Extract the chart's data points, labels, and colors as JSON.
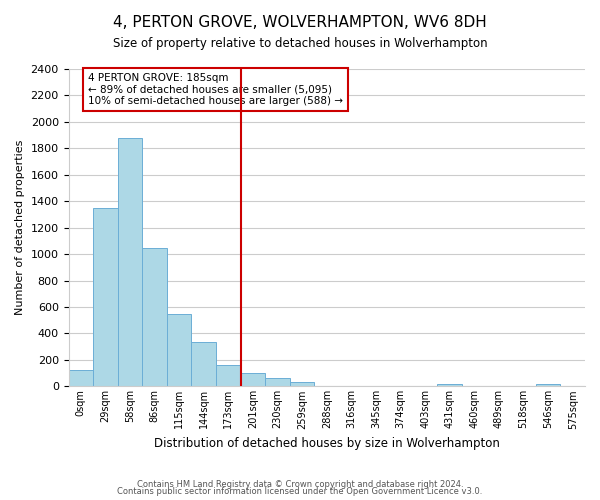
{
  "title": "4, PERTON GROVE, WOLVERHAMPTON, WV6 8DH",
  "subtitle": "Size of property relative to detached houses in Wolverhampton",
  "xlabel": "Distribution of detached houses by size in Wolverhampton",
  "ylabel": "Number of detached properties",
  "bin_labels": [
    "0sqm",
    "29sqm",
    "58sqm",
    "86sqm",
    "115sqm",
    "144sqm",
    "173sqm",
    "201sqm",
    "230sqm",
    "259sqm",
    "288sqm",
    "316sqm",
    "345sqm",
    "374sqm",
    "403sqm",
    "431sqm",
    "460sqm",
    "489sqm",
    "518sqm",
    "546sqm",
    "575sqm"
  ],
  "bar_values": [
    125,
    1350,
    1880,
    1050,
    550,
    335,
    160,
    105,
    60,
    30,
    0,
    0,
    0,
    0,
    0,
    15,
    0,
    0,
    0,
    20,
    0
  ],
  "bar_color": "#add8e6",
  "bar_edge_color": "#6baed6",
  "vline_x": 6.5,
  "vline_color": "#cc0000",
  "annotation_line1": "4 PERTON GROVE: 185sqm",
  "annotation_line2": "← 89% of detached houses are smaller (5,095)",
  "annotation_line3": "10% of semi-detached houses are larger (588) →",
  "annotation_box_edgecolor": "#cc0000",
  "annotation_box_facecolor": "#ffffff",
  "footer_line1": "Contains HM Land Registry data © Crown copyright and database right 2024.",
  "footer_line2": "Contains public sector information licensed under the Open Government Licence v3.0.",
  "ylim": [
    0,
    2400
  ],
  "yticks": [
    0,
    200,
    400,
    600,
    800,
    1000,
    1200,
    1400,
    1600,
    1800,
    2000,
    2200,
    2400
  ],
  "background_color": "#ffffff",
  "grid_color": "#cccccc"
}
